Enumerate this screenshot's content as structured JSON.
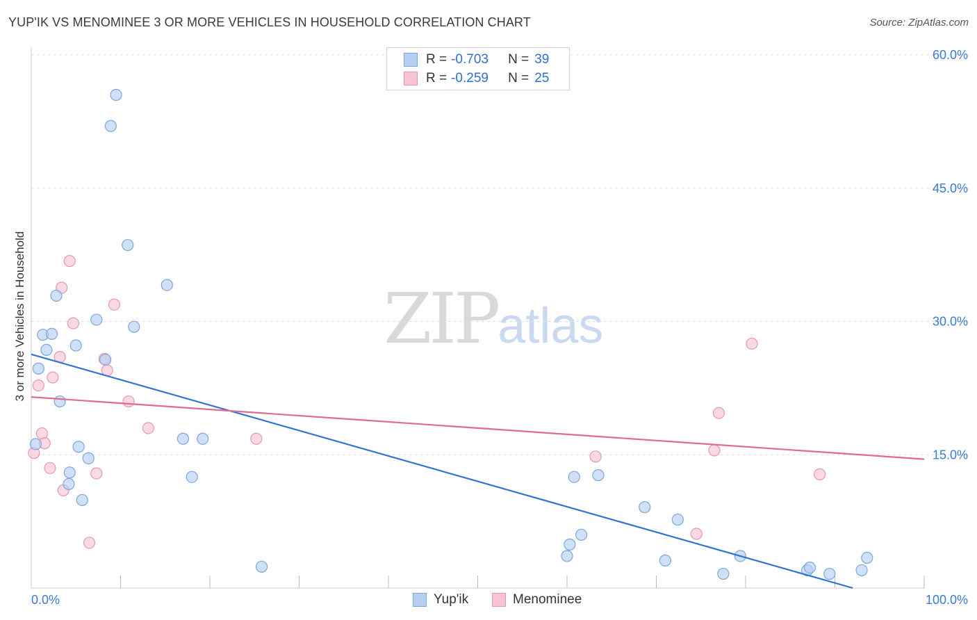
{
  "title": "YUP'IK VS MENOMINEE 3 OR MORE VEHICLES IN HOUSEHOLD CORRELATION CHART",
  "source": "Source: ZipAtlas.com",
  "watermark": {
    "zip": "ZIP",
    "atlas": "atlas"
  },
  "legend_top": {
    "rows": [
      {
        "r_label": "R =",
        "r_value": "-0.703",
        "n_label": "N =",
        "n_value": "39"
      },
      {
        "r_label": "R =",
        "r_value": "-0.259",
        "n_label": "N =",
        "n_value": "25"
      }
    ]
  },
  "colors": {
    "yupik_fill": "#b7d0f1",
    "yupik_stroke": "#7aa6df",
    "yupik_line": "#2f74d0",
    "menominee_fill": "#f7c4d2",
    "menominee_stroke": "#e796b0",
    "menominee_line": "#e06a93",
    "tick_label": "#3a7bd5",
    "grid": "#dddddd"
  },
  "chart_data": {
    "type": "scatter",
    "ylabel": "3 or more Vehicles in Household",
    "xlim": [
      0,
      100
    ],
    "ylim": [
      0,
      60
    ],
    "x_tick_labels": [
      "0.0%",
      "100.0%"
    ],
    "y_ticks": [
      15,
      30,
      45,
      60
    ],
    "y_tick_labels": [
      "15.0%",
      "30.0%",
      "45.0%",
      "60.0%"
    ],
    "grid": true,
    "legend_position": "bottom",
    "series": [
      {
        "name": "Yup'ik",
        "points": [
          [
            0.5,
            16.2
          ],
          [
            0.8,
            24.7
          ],
          [
            1.3,
            28.5
          ],
          [
            1.7,
            26.8
          ],
          [
            2.3,
            28.6
          ],
          [
            2.8,
            32.9
          ],
          [
            3.2,
            21.0
          ],
          [
            4.2,
            11.7
          ],
          [
            4.3,
            13.0
          ],
          [
            5.0,
            27.3
          ],
          [
            5.3,
            15.9
          ],
          [
            5.7,
            9.9
          ],
          [
            6.4,
            14.6
          ],
          [
            7.3,
            30.2
          ],
          [
            8.3,
            25.7
          ],
          [
            8.9,
            52.0
          ],
          [
            9.5,
            55.5
          ],
          [
            10.8,
            38.6
          ],
          [
            11.5,
            29.4
          ],
          [
            15.2,
            34.1
          ],
          [
            17.0,
            16.8
          ],
          [
            18.0,
            12.5
          ],
          [
            19.2,
            16.8
          ],
          [
            25.8,
            2.4
          ],
          [
            60.0,
            3.6
          ],
          [
            60.3,
            4.9
          ],
          [
            60.8,
            12.5
          ],
          [
            61.6,
            6.0
          ],
          [
            63.5,
            12.7
          ],
          [
            68.7,
            9.1
          ],
          [
            71.0,
            3.1
          ],
          [
            72.4,
            7.7
          ],
          [
            77.5,
            1.6
          ],
          [
            79.4,
            3.6
          ],
          [
            86.9,
            2.0
          ],
          [
            87.2,
            2.3
          ],
          [
            89.4,
            1.6
          ],
          [
            93.0,
            2.0
          ],
          [
            93.6,
            3.4
          ]
        ],
        "trend": {
          "x": [
            0,
            92
          ],
          "y": [
            26.3,
            0
          ]
        }
      },
      {
        "name": "Menominee",
        "points": [
          [
            0.3,
            15.2
          ],
          [
            0.8,
            22.8
          ],
          [
            1.2,
            17.4
          ],
          [
            1.5,
            16.3
          ],
          [
            2.1,
            13.5
          ],
          [
            2.4,
            23.7
          ],
          [
            3.2,
            26.0
          ],
          [
            3.4,
            33.8
          ],
          [
            3.6,
            11.0
          ],
          [
            4.3,
            36.8
          ],
          [
            4.7,
            29.8
          ],
          [
            6.5,
            5.1
          ],
          [
            7.3,
            12.9
          ],
          [
            8.2,
            25.8
          ],
          [
            8.5,
            24.5
          ],
          [
            9.3,
            31.9
          ],
          [
            10.9,
            21.0
          ],
          [
            13.1,
            18.0
          ],
          [
            25.2,
            16.8
          ],
          [
            63.2,
            14.8
          ],
          [
            74.5,
            6.1
          ],
          [
            76.5,
            15.5
          ],
          [
            77.0,
            19.7
          ],
          [
            80.7,
            27.5
          ],
          [
            88.3,
            12.8
          ]
        ],
        "trend": {
          "x": [
            0,
            100
          ],
          "y": [
            21.5,
            14.5
          ]
        }
      }
    ]
  }
}
